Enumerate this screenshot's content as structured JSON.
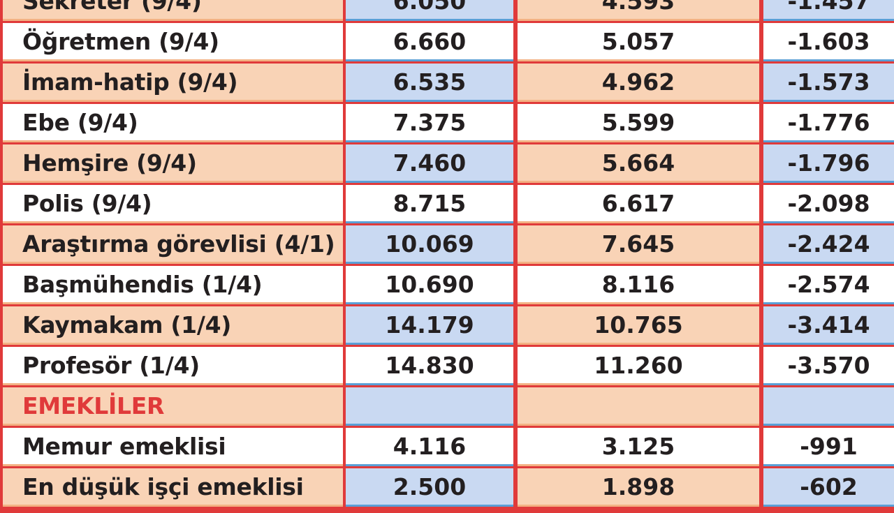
{
  "rows": [
    {
      "label": "Sekreter (9/4)",
      "v1": "6.050",
      "v2": "4.593",
      "diff": "-1.457"
    },
    {
      "label": "Öğretmen (9/4)",
      "v1": "6.660",
      "v2": "5.057",
      "diff": "-1.603"
    },
    {
      "label": "İmam-hatip (9/4)",
      "v1": "6.535",
      "v2": "4.962",
      "diff": "-1.573"
    },
    {
      "label": "Ebe (9/4)",
      "v1": "7.375",
      "v2": "5.599",
      "diff": "-1.776"
    },
    {
      "label": "Hemşire (9/4)",
      "v1": "7.460",
      "v2": "5.664",
      "diff": "-1.796"
    },
    {
      "label": "Polis (9/4)",
      "v1": "8.715",
      "v2": "6.617",
      "diff": "-2.098"
    },
    {
      "label": "Araştırma görevlisi (4/1)",
      "v1": "10.069",
      "v2": "7.645",
      "diff": "-2.424"
    },
    {
      "label": "Başmühendis (1/4)",
      "v1": "10.690",
      "v2": "8.116",
      "diff": "-2.574"
    },
    {
      "label": "Kaymakam (1/4)",
      "v1": "14.179",
      "v2": "10.765",
      "diff": "-3.414"
    },
    {
      "label": "Profesör (1/4)",
      "v1": "14.830",
      "v2": "11.260",
      "diff": "-3.570"
    }
  ],
  "section": {
    "title": "EMEKLİLER"
  },
  "retiree_rows": [
    {
      "label": "Memur emeklisi",
      "v1": "4.116",
      "v2": "3.125",
      "diff": "-991"
    },
    {
      "label": "En düşük işçi emeklisi",
      "v1": "2.500",
      "v2": "1.898",
      "diff": "-602"
    }
  ],
  "colors": {
    "border_red": "#e03a3a",
    "peach": "#f9d3b6",
    "light_blue": "#c9d9f2",
    "section_red": "#e03a3a"
  }
}
